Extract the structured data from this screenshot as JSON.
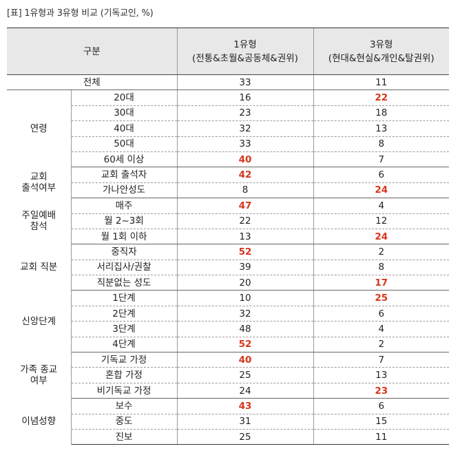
{
  "caption": "[표] 1유형과 3유형 비교 (기독교인, %)",
  "header": {
    "category": "구분",
    "type1_title": "1유형",
    "type1_desc": "(전통&초월&공동체&권위)",
    "type3_title": "3유형",
    "type3_desc": "(현대&현실&개인&탈권위)"
  },
  "highlight_color": "#d6361b",
  "total": {
    "label": "전체",
    "type1": "33",
    "type3": "11"
  },
  "groups": [
    {
      "label": "연령",
      "rows": [
        {
          "label": "20대",
          "type1": "16",
          "type3": "22",
          "hi1": false,
          "hi3": true
        },
        {
          "label": "30대",
          "type1": "23",
          "type3": "18",
          "hi1": false,
          "hi3": false
        },
        {
          "label": "40대",
          "type1": "32",
          "type3": "13",
          "hi1": false,
          "hi3": false
        },
        {
          "label": "50대",
          "type1": "33",
          "type3": "8",
          "hi1": false,
          "hi3": false
        },
        {
          "label": "60세 이상",
          "type1": "40",
          "type3": "7",
          "hi1": true,
          "hi3": false
        }
      ]
    },
    {
      "label": "교회\n출석여부",
      "rows": [
        {
          "label": "교회 출석자",
          "type1": "42",
          "type3": "6",
          "hi1": true,
          "hi3": false
        },
        {
          "label": "가나안성도",
          "type1": "8",
          "type3": "24",
          "hi1": false,
          "hi3": true
        }
      ]
    },
    {
      "label": "주일예배\n참석",
      "rows": [
        {
          "label": "매주",
          "type1": "47",
          "type3": "4",
          "hi1": true,
          "hi3": false
        },
        {
          "label": "월 2~3회",
          "type1": "22",
          "type3": "12",
          "hi1": false,
          "hi3": false
        },
        {
          "label": "월 1회 이하",
          "type1": "13",
          "type3": "24",
          "hi1": false,
          "hi3": true
        }
      ]
    },
    {
      "label": "교회 직분",
      "rows": [
        {
          "label": "중직자",
          "type1": "52",
          "type3": "2",
          "hi1": true,
          "hi3": false
        },
        {
          "label": "서리집사/권찰",
          "type1": "39",
          "type3": "8",
          "hi1": false,
          "hi3": false
        },
        {
          "label": "직분없는 성도",
          "type1": "20",
          "type3": "17",
          "hi1": false,
          "hi3": true
        }
      ]
    },
    {
      "label": "신앙단계",
      "rows": [
        {
          "label": "1단계",
          "type1": "10",
          "type3": "25",
          "hi1": false,
          "hi3": true
        },
        {
          "label": "2단계",
          "type1": "32",
          "type3": "6",
          "hi1": false,
          "hi3": false
        },
        {
          "label": "3단계",
          "type1": "48",
          "type3": "4",
          "hi1": false,
          "hi3": false
        },
        {
          "label": "4단계",
          "type1": "52",
          "type3": "2",
          "hi1": true,
          "hi3": false
        }
      ]
    },
    {
      "label": "가족 종교\n여부",
      "rows": [
        {
          "label": "기독교 가정",
          "type1": "40",
          "type3": "7",
          "hi1": true,
          "hi3": false
        },
        {
          "label": "혼합 가정",
          "type1": "25",
          "type3": "13",
          "hi1": false,
          "hi3": false
        },
        {
          "label": "비기독교 가정",
          "type1": "24",
          "type3": "23",
          "hi1": false,
          "hi3": true
        }
      ]
    },
    {
      "label": "이념성향",
      "rows": [
        {
          "label": "보수",
          "type1": "43",
          "type3": "6",
          "hi1": true,
          "hi3": false
        },
        {
          "label": "중도",
          "type1": "31",
          "type3": "15",
          "hi1": false,
          "hi3": false
        },
        {
          "label": "진보",
          "type1": "25",
          "type3": "11",
          "hi1": false,
          "hi3": false
        }
      ]
    }
  ]
}
